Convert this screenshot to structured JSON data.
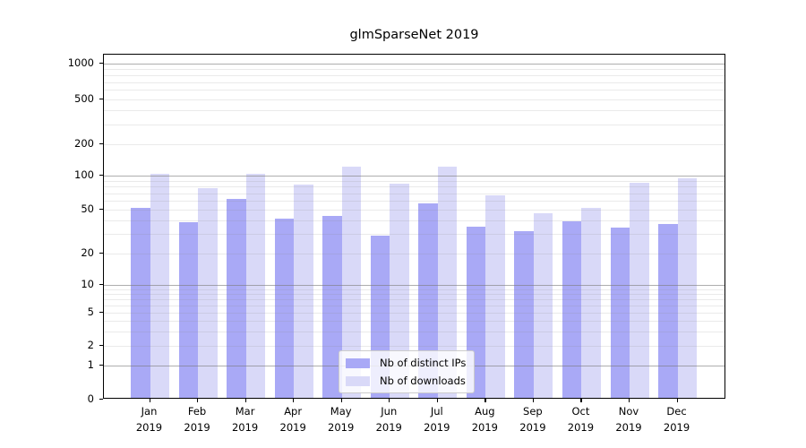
{
  "chart_data": {
    "type": "bar",
    "title": "glmSparseNet 2019",
    "year_label": "2019",
    "categories": [
      "Jan",
      "Feb",
      "Mar",
      "Apr",
      "May",
      "Jun",
      "Jul",
      "Aug",
      "Sep",
      "Oct",
      "Nov",
      "Dec"
    ],
    "series": [
      {
        "name": "Nb of distinct IPs",
        "color": "#a9a9f6",
        "values": [
          50,
          37,
          60,
          40,
          42,
          28,
          55,
          34,
          31,
          38,
          33,
          36
        ]
      },
      {
        "name": "Nb of downloads",
        "color": "#d9d9f8",
        "values": [
          100,
          75,
          100,
          80,
          118,
          82,
          118,
          65,
          45,
          50,
          83,
          92
        ]
      }
    ],
    "xlabel": "",
    "ylabel": "",
    "yscale": "log (log1p-style, 0 shown at baseline)",
    "yticks": [
      0,
      1,
      2,
      5,
      10,
      20,
      50,
      100,
      200,
      500,
      1000
    ],
    "ylim": [
      0,
      1200
    ],
    "grid": "horizontal: major lines at 1,10,100,1000; faint minor lines at 2-9, 20-90, 200-900",
    "legend_position": "inside lower-center"
  },
  "colors": {
    "bar_distinct_ips": "#a9a9f6",
    "bar_downloads": "#d9d9f8",
    "grid_major": "#b3b3b3",
    "grid_minor": "#e9e9e9",
    "axis": "#000000",
    "background": "#ffffff"
  }
}
